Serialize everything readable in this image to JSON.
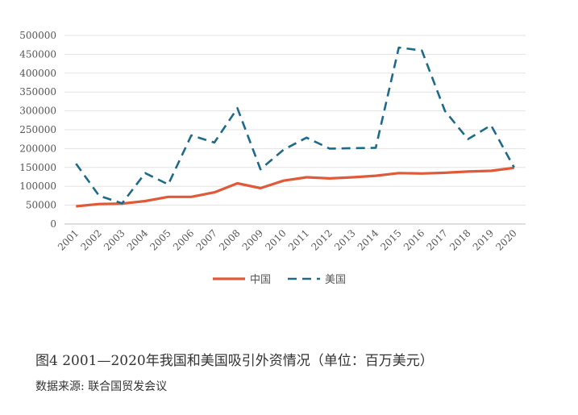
{
  "chart_data": {
    "type": "line",
    "categories": [
      "2001",
      "2002",
      "2003",
      "2004",
      "2005",
      "2006",
      "2007",
      "2008",
      "2009",
      "2010",
      "2011",
      "2012",
      "2013",
      "2014",
      "2015",
      "2016",
      "2017",
      "2018",
      "2019",
      "2020"
    ],
    "series": [
      {
        "name": "中国",
        "color": "#e05a3a",
        "style": "solid",
        "values": [
          47000,
          53000,
          54000,
          61000,
          72000,
          72000,
          84000,
          108000,
          95000,
          115000,
          124000,
          121000,
          124000,
          128000,
          135000,
          134000,
          136000,
          139000,
          141000,
          149000
        ]
      },
      {
        "name": "美国",
        "color": "#1d6a8a",
        "style": "dashed",
        "values": [
          160000,
          75000,
          55000,
          135000,
          105000,
          235000,
          216000,
          307000,
          145000,
          197000,
          229000,
          200000,
          201000,
          202000,
          468000,
          460000,
          300000,
          225000,
          262000,
          150000
        ]
      }
    ],
    "ylim": [
      0,
      500000
    ],
    "yticks": [
      "0",
      "50000",
      "100000",
      "150000",
      "200000",
      "250000",
      "300000",
      "350000",
      "400000",
      "450000",
      "500000"
    ],
    "grid": true,
    "legend": "bottom",
    "caption": "图4    2001—2020年我国和美国吸引外资情况（单位：百万美元）",
    "source": "数据来源: 联合国贸发会议"
  }
}
